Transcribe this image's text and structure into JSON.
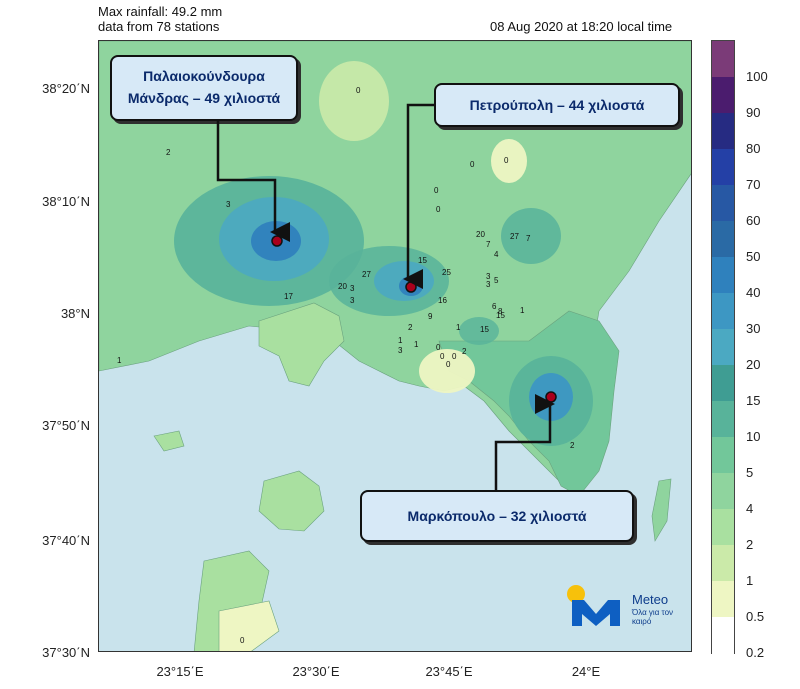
{
  "header": {
    "max_rainfall": "Max rainfall: 49.2 mm",
    "stations": "data from 78 stations",
    "timestamp": "08 Aug 2020 at 18:20 local time"
  },
  "axes": {
    "lat_labels": [
      "38°20΄N",
      "38°10΄N",
      "38°N",
      "37°50΄N",
      "37°40΄N",
      "37°30΄N"
    ],
    "lon_labels": [
      "23°15΄E",
      "23°30΄E",
      "23°45΄E",
      "24°E"
    ]
  },
  "colorbar": {
    "labels": [
      "100",
      "90",
      "80",
      "70",
      "60",
      "50",
      "40",
      "30",
      "20",
      "15",
      "10",
      "5",
      "4",
      "2",
      "1",
      "0.5",
      "0.2"
    ],
    "colors": [
      "#7b3b78",
      "#4b1c6e",
      "#262b82",
      "#2440a6",
      "#2758a4",
      "#2a6aa5",
      "#2f81bd",
      "#3d97c3",
      "#4ba9c2",
      "#3f9d93",
      "#58b39a",
      "#72c79a",
      "#8fd49e",
      "#a9e0a0",
      "#cbeaa9",
      "#eef6c3",
      "#ffffff"
    ]
  },
  "callouts": {
    "mandra_line1": "Παλαιοκούνδουρα",
    "mandra_line2": "Μάνδρας – 49 χιλιοστά",
    "petroupoli": "Πετρούπολη – 44 χιλιοστά",
    "markopoulo": "Μαρκόπουλο – 32 χιλιοστά"
  },
  "station_values": [
    "2",
    "3",
    "1",
    "0",
    "0",
    "0",
    "0",
    "0",
    "17",
    "20",
    "27",
    "15",
    "25",
    "16",
    "9",
    "20",
    "7",
    "27",
    "7",
    "4",
    "3",
    "3",
    "5",
    "6",
    "8",
    "15",
    "15",
    "1",
    "2",
    "2",
    "1",
    "0",
    "0",
    "0",
    "0",
    "1",
    "3",
    "3",
    "3",
    "0",
    "2",
    "1"
  ],
  "logo": {
    "name": "Meteo",
    "tagline": "Όλα για τον καιρό"
  }
}
